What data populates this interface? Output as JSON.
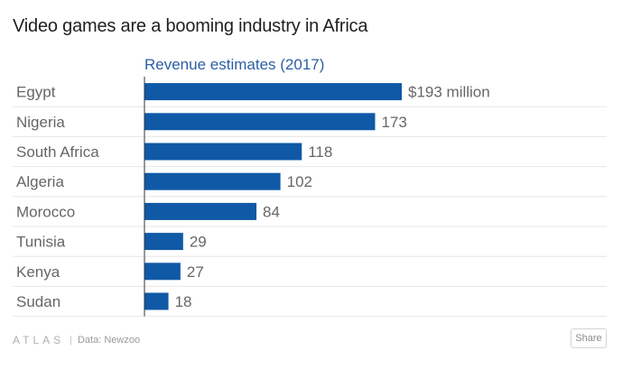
{
  "title": "Video games are a booming industry in Africa",
  "footer": {
    "logo": "ATLAS",
    "separator": "|",
    "source": "Data: Newzoo",
    "share_label": "Share"
  },
  "colors": {
    "bar": "#0f59a6",
    "subtitle": "#2c5fa4",
    "label": "#666666",
    "grid": "#e6e6e6",
    "axis": "#333333"
  },
  "chart_data": {
    "type": "bar",
    "orientation": "horizontal",
    "title": "Video games are a booming industry in Africa",
    "subtitle": "Revenue estimates (2017)",
    "categories": [
      "Egypt",
      "Nigeria",
      "South Africa",
      "Algeria",
      "Morocco",
      "Tunisia",
      "Kenya",
      "Sudan"
    ],
    "values": [
      193,
      173,
      118,
      102,
      84,
      29,
      27,
      18
    ],
    "value_labels": [
      "$193 million",
      "173",
      "118",
      "102",
      "84",
      "29",
      "27",
      "18"
    ],
    "unit": "$ million",
    "xlim": [
      0,
      193
    ],
    "grid": true
  }
}
